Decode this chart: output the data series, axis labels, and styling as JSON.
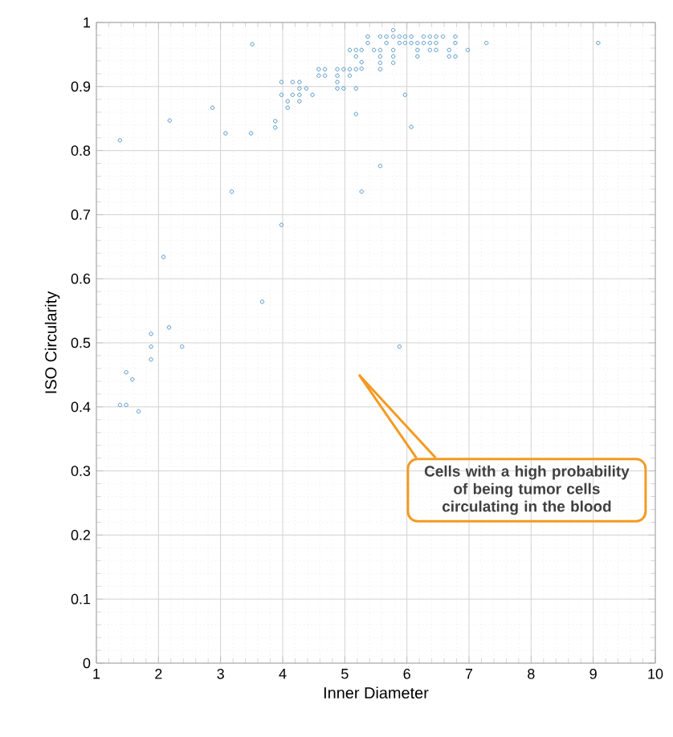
{
  "chart_data": {
    "type": "scatter",
    "xlabel": "Inner Diameter",
    "ylabel": "ISO Circularity",
    "xlim": [
      1,
      10
    ],
    "ylim": [
      0,
      1
    ],
    "xticks": [
      1,
      2,
      3,
      4,
      5,
      6,
      7,
      8,
      9,
      10
    ],
    "yticks": [
      0,
      0.1,
      0.2,
      0.3,
      0.4,
      0.5,
      0.6,
      0.7,
      0.8,
      0.9,
      1
    ],
    "grid": true,
    "marker": "circle",
    "series": [
      {
        "color": "#4a90c8",
        "x": [
          3.51,
          1.38,
          2.18,
          2.87,
          3.08,
          3.49,
          3.88,
          3.88,
          3.18,
          5.27,
          5.57,
          3.98,
          4.16,
          4.27,
          3.98,
          4.16,
          4.27,
          4.48,
          4.08,
          4.27,
          4.08,
          4.27,
          4.38,
          4.58,
          4.68,
          4.58,
          4.68,
          4.88,
          4.98,
          5.08,
          5.18,
          4.88,
          5.08,
          4.88,
          4.88,
          4.98,
          5.18,
          5.27,
          5.27,
          5.18,
          5.08,
          5.18,
          5.27,
          5.18,
          5.37,
          5.37,
          5.47,
          5.57,
          5.57,
          5.57,
          5.57,
          5.78,
          5.78,
          5.78,
          5.78,
          5.97,
          6.07,
          6.17,
          6.17,
          6.37,
          6.47,
          6.58,
          6.78,
          6.78,
          6.68,
          6.68,
          6.78,
          6.98,
          7.28,
          9.08,
          5.57,
          5.67,
          5.78,
          5.88,
          5.97,
          6.07,
          6.27,
          6.37,
          6.47,
          5.67,
          5.88,
          5.97,
          6.07,
          6.17,
          6.27,
          6.37,
          6.47,
          3.98,
          2.08,
          3.67,
          2.17,
          1.88,
          1.88,
          2.38,
          1.88,
          5.88,
          1.48,
          1.58,
          1.38,
          1.48,
          1.68
        ],
        "values": [
          0.966,
          0.816,
          0.847,
          0.867,
          0.827,
          0.827,
          0.846,
          0.836,
          0.736,
          0.736,
          0.776,
          0.907,
          0.907,
          0.907,
          0.887,
          0.887,
          0.887,
          0.887,
          0.877,
          0.877,
          0.867,
          0.897,
          0.897,
          0.927,
          0.927,
          0.917,
          0.917,
          0.927,
          0.927,
          0.927,
          0.927,
          0.917,
          0.917,
          0.907,
          0.897,
          0.897,
          0.897,
          0.938,
          0.928,
          0.857,
          0.957,
          0.957,
          0.957,
          0.947,
          0.978,
          0.968,
          0.957,
          0.957,
          0.947,
          0.937,
          0.927,
          0.988,
          0.957,
          0.947,
          0.937,
          0.887,
          0.837,
          0.957,
          0.947,
          0.957,
          0.957,
          0.978,
          0.978,
          0.968,
          0.957,
          0.947,
          0.947,
          0.957,
          0.968,
          0.968,
          0.978,
          0.978,
          0.978,
          0.978,
          0.978,
          0.978,
          0.978,
          0.978,
          0.978,
          0.968,
          0.968,
          0.968,
          0.968,
          0.968,
          0.968,
          0.968,
          0.968,
          0.684,
          0.634,
          0.564,
          0.524,
          0.514,
          0.494,
          0.494,
          0.474,
          0.494,
          0.454,
          0.443,
          0.403,
          0.403,
          0.393
        ]
      }
    ],
    "annotations": [
      "Cells with a high probability of being tumor cells circulating in the blood"
    ]
  }
}
